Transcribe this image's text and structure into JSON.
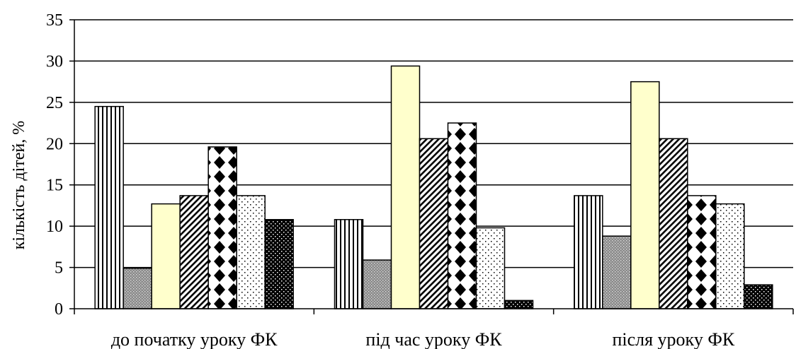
{
  "chart_data": {
    "type": "bar",
    "title": "",
    "xlabel": "",
    "ylabel": "кількість дітей, %",
    "ylim": [
      0,
      35
    ],
    "yticks": [
      0,
      5,
      10,
      15,
      20,
      25,
      30,
      35
    ],
    "grid": true,
    "legend": "none",
    "categories": [
      "до початку уроку ФК",
      "під час уроку ФК",
      "після уроку ФК"
    ],
    "series": [
      {
        "pattern": "vertical-stripes",
        "color": "#ffffff",
        "values": [
          24.5,
          10.8,
          13.7
        ]
      },
      {
        "pattern": "gray-dots",
        "color": "#a0a0a0",
        "values": [
          4.9,
          5.9,
          8.8
        ]
      },
      {
        "pattern": "solid",
        "color": "#ffffcc",
        "values": [
          12.7,
          29.4,
          27.5
        ]
      },
      {
        "pattern": "diagonal-stripes",
        "color": "#ffffff",
        "values": [
          13.7,
          20.6,
          20.6
        ]
      },
      {
        "pattern": "diamonds",
        "color": "#000000",
        "values": [
          19.6,
          22.5,
          13.7
        ]
      },
      {
        "pattern": "sparse-dots",
        "color": "#ffffff",
        "values": [
          13.7,
          9.8,
          12.7
        ]
      },
      {
        "pattern": "black-dots",
        "color": "#000000",
        "values": [
          10.8,
          1.0,
          2.9
        ]
      }
    ]
  }
}
